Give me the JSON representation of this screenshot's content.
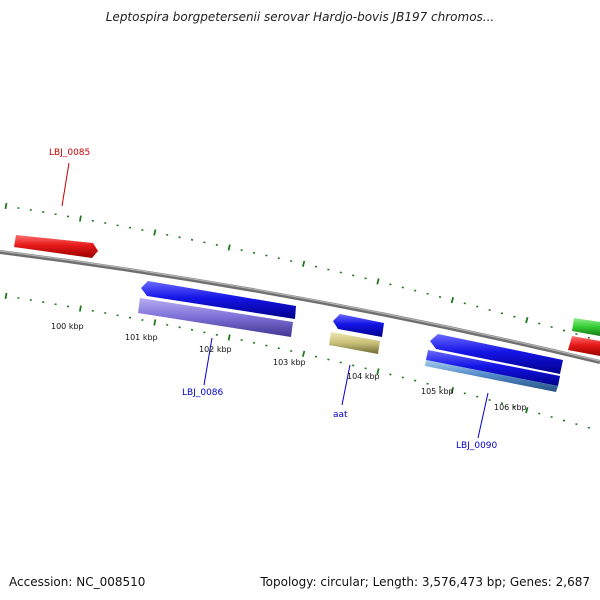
{
  "header": {
    "title": "Leptospira borgpetersenii serovar Hardjo-bovis JB197 chromos..."
  },
  "footer": {
    "accession": "Accession: NC_008510",
    "summary": "Topology: circular; Length: 3,576,473 bp; Genes: 2,687"
  },
  "colors": {
    "backbone": "#8a8a8a",
    "tick": "#1f7a1f",
    "forward_label": "#cc0000",
    "reverse_label": "#0000cc",
    "red_feature": "#e61919",
    "blue_feature": "#1414e6",
    "purple_feature": "#7b6fd6",
    "tan_feature": "#c8bf78",
    "steelblue_feature": "#4f86c6",
    "green_feature": "#33cc33"
  },
  "tick_labels": [
    {
      "id": "tick-100",
      "text": "100 kbp"
    },
    {
      "id": "tick-101",
      "text": "101 kbp"
    },
    {
      "id": "tick-102",
      "text": "102 kbp"
    },
    {
      "id": "tick-103",
      "text": "103 kbp"
    },
    {
      "id": "tick-104",
      "text": "104 kbp"
    },
    {
      "id": "tick-105",
      "text": "105 kbp"
    },
    {
      "id": "tick-106",
      "text": "106 kbp"
    }
  ],
  "gene_labels": [
    {
      "id": "lbj_0085",
      "text": "LBJ_0085"
    },
    {
      "id": "lbj_0086",
      "text": "LBJ_0086"
    },
    {
      "id": "aat",
      "text": "aat"
    },
    {
      "id": "lbj_0090",
      "text": "LBJ_0090"
    }
  ]
}
